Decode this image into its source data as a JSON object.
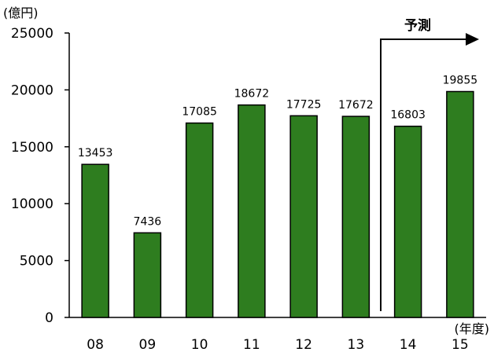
{
  "chart_data": {
    "type": "bar",
    "categories": [
      "08",
      "09",
      "10",
      "11",
      "12",
      "13",
      "14",
      "15"
    ],
    "values": [
      13453,
      7436,
      17085,
      18672,
      17725,
      17672,
      16803,
      19855
    ],
    "data_labels": [
      "13453",
      "7436",
      "17085",
      "18672",
      "17725",
      "17672",
      "16803",
      "19855"
    ],
    "title": "",
    "xlabel": "(年度)",
    "ylabel": "(億円)",
    "ylim": [
      0,
      25000
    ],
    "yticks": [
      "0",
      "5000",
      "10000",
      "15000",
      "20000",
      "25000"
    ],
    "grid": false,
    "forecast": {
      "label": "予測",
      "from_category": "14"
    },
    "colors": {
      "bar_fill": "#2e7d1f",
      "bar_stroke": "#000000"
    }
  }
}
